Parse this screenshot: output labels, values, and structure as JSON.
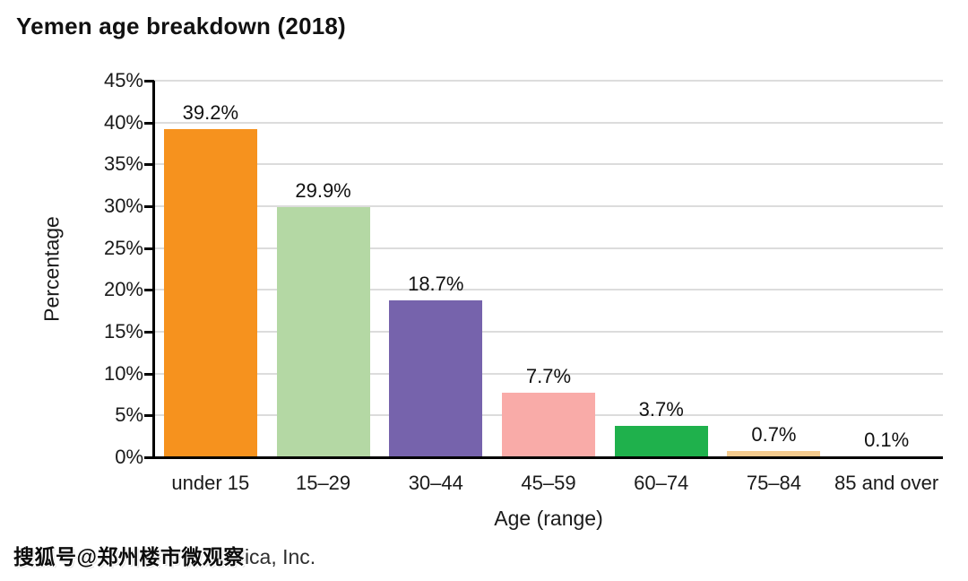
{
  "title": "Yemen age breakdown (2018)",
  "watermark": "搜狐号@郑州楼市微观察",
  "source_suffix": "ica, Inc.",
  "chart_data": {
    "type": "bar",
    "title": "Yemen age breakdown (2018)",
    "categories": [
      "under 15",
      "15–29",
      "30–44",
      "45–59",
      "60–74",
      "75–84",
      "85 and over"
    ],
    "values": [
      39.2,
      29.9,
      18.7,
      7.7,
      3.7,
      0.7,
      0.1
    ],
    "value_labels": [
      "39.2%",
      "29.9%",
      "18.7%",
      "7.7%",
      "3.7%",
      "0.7%",
      "0.1%"
    ],
    "bar_colors": [
      "#F6921E",
      "#B4D8A4",
      "#7663AC",
      "#F9ABA8",
      "#1FB14C",
      "#F5CB8E",
      "#B8CCE4"
    ],
    "xlabel": "Age (range)",
    "ylabel": "Percentage",
    "ylim": [
      0,
      45
    ],
    "ytick_step": 5,
    "ytick_labels": [
      "0%",
      "5%",
      "10%",
      "15%",
      "20%",
      "25%",
      "30%",
      "35%",
      "40%",
      "45%"
    ],
    "grid": true,
    "gridline_color": "#dcdcdc",
    "axis_color": "#000000",
    "legend": false
  }
}
